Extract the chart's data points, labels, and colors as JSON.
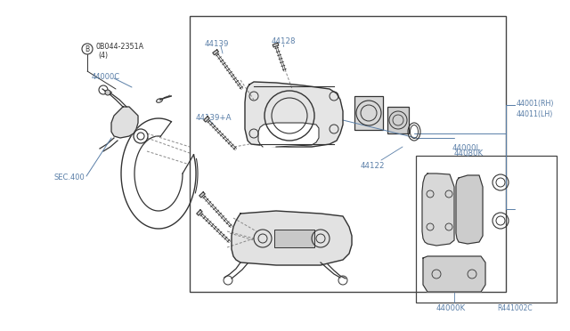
{
  "bg_color": "#ffffff",
  "line_color": "#333333",
  "label_color": "#5a7fa8",
  "fig_width": 6.4,
  "fig_height": 3.72,
  "labels": {
    "B_bolt": "B",
    "bolt_num": "0B044-2351A",
    "bolt_qty": "(4)",
    "44000C": "44000C",
    "SEC400": "SEC.400",
    "44139": "44139",
    "44128": "44128",
    "44139A": "44139+A",
    "44000L": "44000L",
    "44122": "44122",
    "44001RH": "44001(RH)",
    "44011LH": "44011(LH)",
    "44080K": "44080K",
    "44000K": "44000K",
    "R441002C": "R441002C"
  }
}
